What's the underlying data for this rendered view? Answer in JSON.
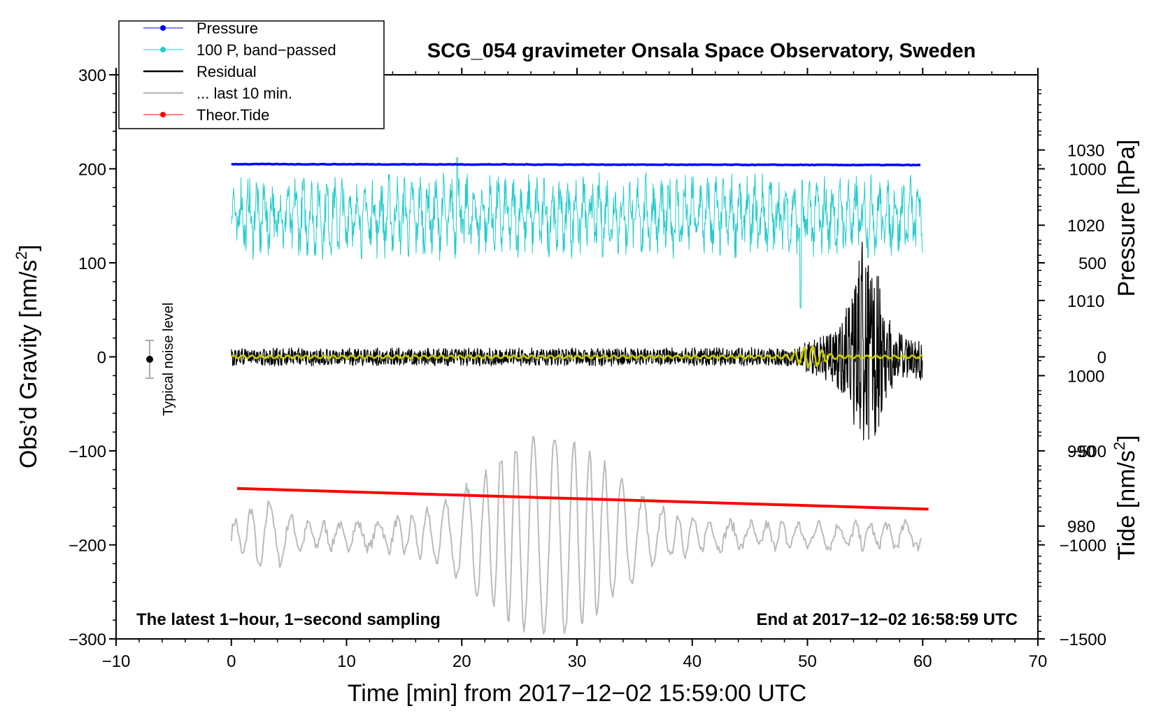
{
  "chart_data": {
    "type": "line",
    "title": "SCG_054 gravimeter Onsala Space Observatory, Sweden",
    "xlabel": "Time [min] from 2017−12−02 15:59:00 UTC",
    "ylabel_left_main": "Obs’d Gravity [nm/s",
    "ylabel_left_sup": "2",
    "ylabel_left_end": "]",
    "ylabel_right_pressure": "Pressure [hPa]",
    "ylabel_right_tide_main": "Tide [nm/s",
    "ylabel_right_tide_sup": "2",
    "ylabel_right_tide_end": "]",
    "xlim": [
      -10,
      70
    ],
    "ylim_left": [
      -300,
      300
    ],
    "pressure_range": [
      965,
      1040
    ],
    "tide_range": [
      -1500,
      1500
    ],
    "x_ticks": [
      "−10",
      "0",
      "10",
      "20",
      "30",
      "40",
      "50",
      "60",
      "70"
    ],
    "y_left_ticks": [
      "300",
      "200",
      "100",
      "0",
      "−100",
      "−200",
      "−300"
    ],
    "y_pressure_ticks": [
      "1030",
      "1020",
      "1010",
      "1000",
      "990",
      "980"
    ],
    "y_tide_ticks": [
      "1000",
      "500",
      "0",
      "−500",
      "−1000",
      "−1500"
    ],
    "legend_position": "top-left",
    "legend": [
      {
        "name": "Pressure",
        "color": "#0000ff",
        "marker": true
      },
      {
        "name": "100 P, band−passed",
        "color": "#22cccc",
        "marker": true
      },
      {
        "name": "Residual",
        "color": "#000000",
        "marker": false
      },
      {
        "name": "... last 10 min.",
        "color": "#bbbbbb",
        "marker": false
      },
      {
        "name": "Theor.Tide",
        "color": "#ff0000",
        "marker": true
      }
    ],
    "noise_label": "Typical noise level",
    "noise_level": {
      "x": -7,
      "y": 0,
      "err": 20
    },
    "annotation_left": "The latest 1−hour, 1−second sampling",
    "annotation_right": "End at 2017−12−02 16:58:59 UTC",
    "series": [
      {
        "name": "Pressure",
        "color": "#0000ff",
        "x_range": [
          0,
          60
        ],
        "y_start": 205,
        "y_end": 204
      },
      {
        "name": "100 P, band−passed",
        "color": "#22cccc",
        "x_range": [
          0,
          60
        ],
        "center": 150,
        "amplitude": 25,
        "min": 52,
        "max": 212
      },
      {
        "name": "Residual",
        "color": "#000000",
        "x_range": [
          0,
          60
        ],
        "center": 0,
        "amplitude": 10,
        "quake_window": [
          49,
          60
        ],
        "min": -120,
        "max": 122
      },
      {
        "name": "... last 10 min.",
        "color": "#bbbbbb",
        "x_range": [
          0,
          60
        ],
        "center": -190,
        "min": -305,
        "max": -62
      },
      {
        "name": "Theor.Tide",
        "color": "#ff0000",
        "x_range": [
          0.5,
          60.5
        ],
        "y_start": -140,
        "y_end": -162
      },
      {
        "name": "band-passed residual",
        "color": "#cccc00",
        "x_range": [
          0,
          60
        ],
        "center": 0
      }
    ]
  }
}
